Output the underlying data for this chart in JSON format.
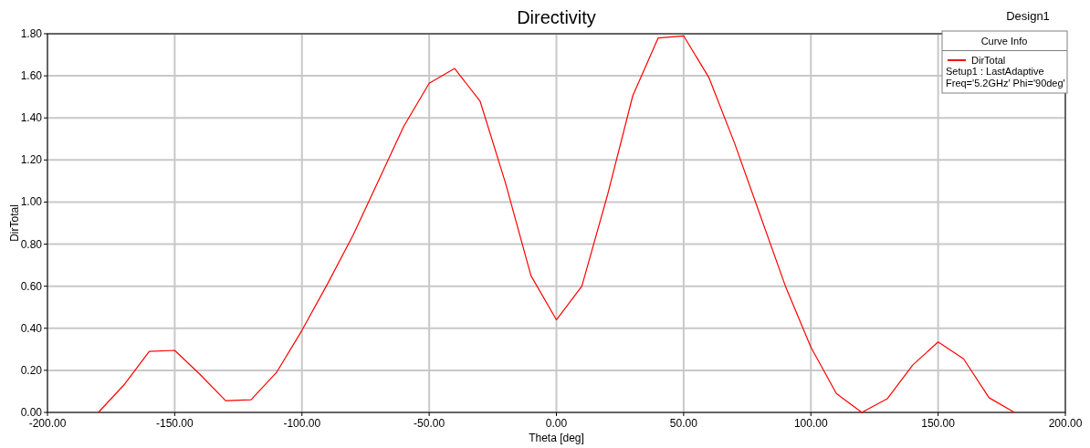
{
  "chart_data": {
    "type": "line",
    "title": "Directivity",
    "xlabel": "Theta [deg]",
    "ylabel": "DirTotal",
    "legend_title": "Curve Info",
    "legend": "top right",
    "grid": true,
    "marker": "none",
    "line_style": "solid",
    "annotations": [
      "Design1",
      "Setup1 : LastAdaptive",
      "Freq='5.2GHz' Phi='90deg'"
    ],
    "xlim": [
      -200,
      200
    ],
    "xticks": [
      {
        "value": -200,
        "label": "-200.00"
      },
      {
        "value": -150,
        "label": "-150.00"
      },
      {
        "value": -100,
        "label": "-100.00"
      },
      {
        "value": -50,
        "label": "-50.00"
      },
      {
        "value": 0,
        "label": "0.00"
      },
      {
        "value": 50,
        "label": "50.00"
      },
      {
        "value": 100,
        "label": "100.00"
      },
      {
        "value": 150,
        "label": "150.00"
      },
      {
        "value": 200,
        "label": "200.00"
      }
    ],
    "ylim": [
      0,
      1.8
    ],
    "yticks": [
      {
        "value": 0,
        "label": "0.00"
      },
      {
        "value": 0.2,
        "label": "0.20"
      },
      {
        "value": 0.4,
        "label": "0.40"
      },
      {
        "value": 0.6,
        "label": "0.60"
      },
      {
        "value": 0.8,
        "label": "0.80"
      },
      {
        "value": 1,
        "label": "1.00"
      },
      {
        "value": 1.2,
        "label": "1.20"
      },
      {
        "value": 1.4,
        "label": "1.40"
      },
      {
        "value": 1.6,
        "label": "1.60"
      },
      {
        "value": 1.8,
        "label": "1.80"
      }
    ],
    "x": [
      -180,
      -170,
      -160,
      -150,
      -140,
      -130,
      -120,
      -110,
      -100,
      -90,
      -80,
      -70,
      -60,
      -50,
      -40,
      -30,
      -20,
      -10,
      0,
      10,
      20,
      30,
      40,
      50,
      60,
      70,
      80,
      90,
      100,
      110,
      120,
      130,
      140,
      150,
      160,
      170,
      180
    ],
    "series": [
      {
        "name": "DirTotal",
        "color": "#ff0000",
        "values": [
          0,
          0.13,
          0.29,
          0.295,
          0.18,
          0.056,
          0.06,
          0.19,
          0.39,
          0.61,
          0.84,
          1.1,
          1.36,
          1.565,
          1.635,
          1.48,
          1.09,
          0.65,
          0.44,
          0.6,
          1.03,
          1.505,
          1.78,
          1.79,
          1.59,
          1.28,
          0.94,
          0.6,
          0.31,
          0.09,
          0,
          0.065,
          0.225,
          0.335,
          0.255,
          0.07,
          0
        ]
      }
    ]
  }
}
